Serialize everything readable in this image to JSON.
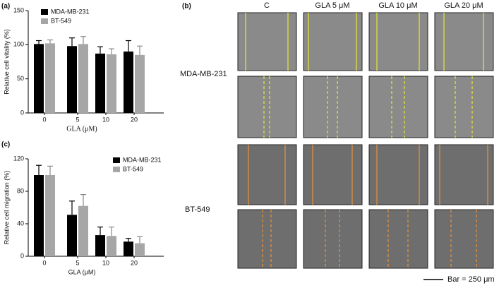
{
  "chart_data": [
    {
      "type": "bar",
      "panel": "(a)",
      "ylabel": "Relative cell vitality (%)",
      "xlabel": "GLA (μM)",
      "categories": [
        "0",
        "5",
        "10",
        "20"
      ],
      "series": [
        {
          "name": "MDA-MB-231",
          "color": "#000000",
          "values": [
            101,
            98,
            87,
            90
          ],
          "error": [
            5,
            12,
            10,
            16
          ]
        },
        {
          "name": "BT-549",
          "color": "#a6a6a6",
          "values": [
            102,
            101,
            86,
            85
          ],
          "error": [
            5,
            11,
            8,
            13
          ]
        }
      ],
      "ylim": [
        0,
        150
      ],
      "yticks": [
        0,
        50,
        100,
        150
      ],
      "grid": false,
      "legend": "top-left"
    },
    {
      "type": "bar",
      "panel": "(c)",
      "ylabel": "Relative cell migration (%)",
      "xlabel": "GLA (μM)",
      "categories": [
        "0",
        "5",
        "10",
        "20"
      ],
      "series": [
        {
          "name": "MDA-MB-231",
          "color": "#000000",
          "values": [
            100,
            51,
            26,
            18
          ],
          "error": [
            12,
            17,
            10,
            4
          ]
        },
        {
          "name": "BT-549",
          "color": "#a6a6a6",
          "values": [
            100,
            62,
            25,
            16
          ],
          "error": [
            11,
            14,
            11,
            8
          ]
        }
      ],
      "ylim": [
        0,
        120
      ],
      "yticks": [
        0,
        40,
        80,
        120
      ],
      "grid": false,
      "legend": "top-right"
    }
  ],
  "micrographs": {
    "panel": "(b)",
    "columns": [
      "C",
      "GLA  5 μM",
      "GLA  10 μM",
      "GLA  20 μM"
    ],
    "rows": [
      "MDA-MB-231",
      "BT-549"
    ],
    "scale_bar": "Bar = 250 μm"
  }
}
